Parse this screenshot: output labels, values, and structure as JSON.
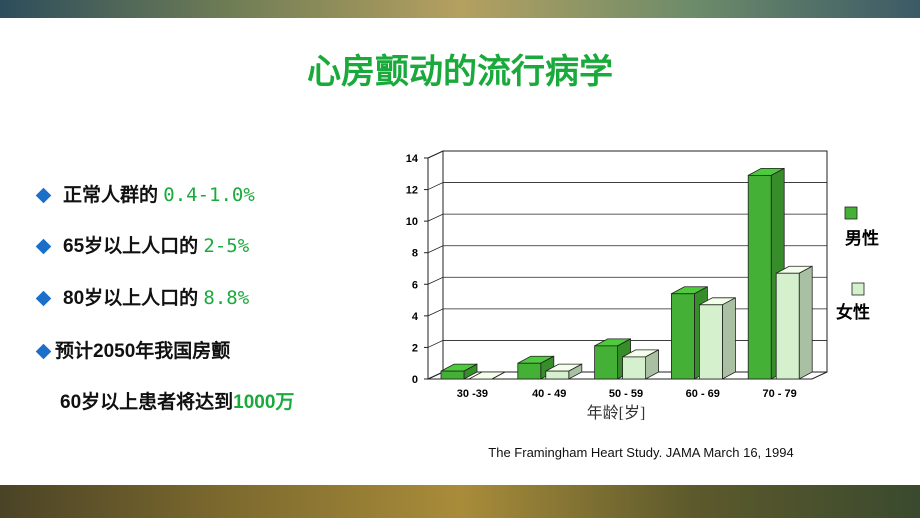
{
  "title": "心房颤动的流行病学",
  "bullets": [
    {
      "text": "正常人群的",
      "highlight": "0.4-1.0%"
    },
    {
      "text": "65岁以上人口的",
      "highlight": "2-5%"
    },
    {
      "text": "80岁以上人口的",
      "highlight": "8.8%"
    },
    {
      "lines": [
        "预计2050年我国房颤",
        "60岁以上患者将达到"
      ],
      "highlight": "1000万"
    }
  ],
  "source": "The Framingham Heart Study. JAMA March 16, 1994",
  "chart_data": {
    "type": "bar3d",
    "x_label": "年龄[岁]",
    "categories": [
      "30 -39",
      "40 - 49",
      "50 - 59",
      "60 - 69",
      "70 - 79"
    ],
    "series": [
      {
        "name": "男性",
        "color": "#44b035",
        "values": [
          0.5,
          1.0,
          2.1,
          5.4,
          12.9
        ]
      },
      {
        "name": "女性",
        "color": "#d4f0cc",
        "values": [
          0,
          0.5,
          1.4,
          4.7,
          6.7
        ]
      }
    ],
    "ylim": [
      0,
      14
    ],
    "yticks": [
      0,
      2,
      4,
      6,
      8,
      10,
      12,
      14
    ],
    "grid": true,
    "legend": "right"
  }
}
